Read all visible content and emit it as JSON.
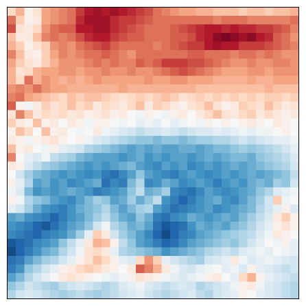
{
  "chart_data": {
    "type": "heatmap",
    "colormap": "RdBu_r",
    "colors": {
      "low": "#053061",
      "mid": "#f7f7f7",
      "high": "#67001f",
      "frame": "#000000"
    },
    "value_range": [
      -1,
      1
    ],
    "axes_ticks": false,
    "grid": false,
    "legend": "none",
    "rows": 34,
    "cols": 34,
    "values": [
      [
        0.2,
        0.35,
        0.05,
        0.15,
        0.4,
        0.45,
        0.5,
        0.55,
        0.7,
        0.8,
        0.85,
        0.8,
        0.85,
        0.8,
        0.75,
        0.7,
        0.65,
        0.55,
        0.5,
        0.45,
        0.4,
        0.4,
        0.35,
        0.35,
        0.3,
        0.3,
        0.3,
        0.25,
        0.3,
        0.3,
        0.25,
        0.3,
        0.3,
        0.35
      ],
      [
        0.55,
        0.25,
        0.05,
        0.1,
        0.4,
        0.45,
        0.5,
        0.55,
        0.75,
        0.85,
        0.85,
        0.85,
        0.75,
        0.7,
        0.7,
        0.65,
        0.6,
        0.55,
        0.55,
        0.55,
        0.55,
        0.55,
        0.55,
        0.55,
        0.5,
        0.55,
        0.55,
        0.55,
        0.5,
        0.5,
        0.5,
        0.5,
        0.5,
        0.55
      ],
      [
        0.65,
        0.15,
        0.1,
        0.2,
        0.45,
        0.55,
        0.6,
        0.6,
        0.8,
        0.8,
        0.85,
        0.85,
        0.75,
        0.7,
        0.65,
        0.6,
        0.55,
        0.55,
        0.55,
        0.6,
        0.65,
        0.7,
        0.75,
        0.8,
        0.8,
        0.75,
        0.8,
        0.75,
        0.75,
        0.7,
        0.7,
        0.65,
        0.6,
        0.5
      ],
      [
        0.3,
        0.1,
        0.1,
        0.3,
        0.5,
        0.55,
        0.5,
        0.55,
        0.65,
        0.75,
        0.8,
        0.8,
        0.7,
        0.65,
        0.6,
        0.6,
        0.55,
        0.55,
        0.55,
        0.6,
        0.6,
        0.65,
        0.75,
        0.8,
        0.9,
        0.95,
        0.9,
        0.85,
        0.9,
        0.8,
        0.75,
        0.6,
        0.55,
        0.45
      ],
      [
        0.35,
        0.25,
        0.05,
        0.15,
        0.25,
        0.45,
        0.5,
        0.45,
        0.55,
        0.6,
        0.65,
        0.7,
        0.6,
        0.55,
        0.55,
        0.55,
        0.55,
        0.5,
        0.55,
        0.6,
        0.65,
        0.7,
        0.7,
        0.8,
        0.85,
        0.8,
        0.8,
        0.7,
        0.7,
        0.7,
        0.65,
        0.6,
        0.55,
        0.5
      ],
      [
        0.5,
        0.3,
        0.1,
        0.05,
        0.25,
        0.4,
        0.5,
        0.45,
        0.5,
        0.55,
        0.55,
        0.6,
        0.55,
        0.5,
        0.45,
        0.55,
        0.55,
        0.55,
        0.55,
        0.55,
        0.55,
        0.6,
        0.6,
        0.55,
        0.55,
        0.55,
        0.5,
        0.55,
        0.55,
        0.5,
        0.55,
        0.5,
        0.45,
        0.45
      ],
      [
        0.4,
        0.25,
        0.15,
        0.1,
        0.25,
        0.35,
        0.45,
        0.45,
        0.45,
        0.5,
        0.55,
        0.5,
        0.55,
        0.5,
        0.5,
        0.6,
        0.55,
        0.6,
        0.7,
        0.7,
        0.7,
        0.65,
        0.65,
        0.6,
        0.55,
        0.5,
        0.45,
        0.45,
        0.5,
        0.45,
        0.45,
        0.5,
        0.5,
        0.45
      ],
      [
        0.35,
        0.15,
        0.2,
        0.35,
        0.4,
        0.4,
        0.45,
        0.45,
        0.4,
        0.45,
        0.45,
        0.5,
        0.45,
        0.45,
        0.5,
        0.45,
        0.45,
        0.5,
        0.55,
        0.6,
        0.65,
        0.6,
        0.55,
        0.5,
        0.45,
        0.4,
        0.4,
        0.4,
        0.45,
        0.45,
        0.4,
        0.45,
        0.45,
        0.45
      ],
      [
        0.35,
        0.2,
        0.55,
        0.35,
        0.45,
        0.4,
        0.35,
        0.4,
        0.35,
        0.4,
        0.45,
        0.4,
        0.4,
        0.4,
        0.4,
        0.4,
        0.45,
        0.4,
        0.4,
        0.45,
        0.45,
        0.4,
        0.4,
        0.4,
        0.35,
        0.35,
        0.35,
        0.35,
        0.4,
        0.35,
        0.35,
        0.4,
        0.4,
        0.4
      ],
      [
        0.45,
        0.5,
        0.45,
        0.55,
        0.45,
        0.4,
        0.4,
        0.35,
        0.35,
        0.35,
        0.35,
        0.35,
        0.35,
        0.4,
        0.35,
        0.35,
        0.35,
        0.35,
        0.35,
        0.35,
        0.35,
        0.35,
        0.3,
        0.3,
        0.3,
        0.3,
        0.3,
        0.3,
        0.3,
        0.3,
        0.35,
        0.3,
        0.3,
        0.3
      ],
      [
        0.5,
        0.55,
        0.4,
        0.35,
        0.3,
        0.25,
        0.2,
        0.3,
        0.25,
        0.3,
        0.3,
        0.25,
        0.2,
        0.15,
        0.2,
        0.25,
        0.2,
        0.25,
        0.3,
        0.25,
        0.15,
        0.2,
        0.25,
        0.2,
        0.25,
        0.2,
        0.25,
        0.2,
        0.25,
        0.2,
        0.25,
        0.25,
        0.2,
        0.25
      ],
      [
        0.6,
        0.05,
        -0.05,
        0.1,
        0.25,
        0.15,
        0.2,
        0.3,
        0.2,
        0.25,
        0.1,
        0.2,
        0.15,
        0.1,
        0.2,
        0.3,
        0.1,
        0.25,
        0.2,
        0.1,
        0.05,
        0.15,
        0.2,
        0.3,
        0.15,
        0.05,
        0.1,
        0.25,
        0.2,
        0.15,
        0.3,
        0.2,
        0.1,
        0.15
      ],
      [
        0.15,
        0.5,
        0.3,
        0.1,
        0.2,
        0.15,
        0.2,
        0.1,
        0.15,
        0.05,
        0.1,
        0.15,
        0.05,
        0.1,
        0.0,
        -0.05,
        0.05,
        0.0,
        -0.05,
        0.05,
        0.1,
        0.0,
        0.1,
        0.2,
        0.3,
        0.15,
        0.1,
        0.2,
        0.25,
        0.1,
        0.2,
        0.1,
        0.05,
        0.1
      ],
      [
        0.25,
        0.1,
        0.05,
        0.3,
        0.05,
        0.1,
        0.0,
        0.1,
        0.05,
        -0.05,
        0.05,
        0.05,
        0.0,
        -0.05,
        0.0,
        -0.1,
        -0.05,
        -0.1,
        0.0,
        -0.1,
        -0.05,
        0.0,
        -0.05,
        0.05,
        0.0,
        0.05,
        0.0,
        0.05,
        0.1,
        0.05,
        0.0,
        0.1,
        0.05,
        0.0
      ],
      [
        0.05,
        0.3,
        0.2,
        0.0,
        0.3,
        0.05,
        0.1,
        0.0,
        -0.05,
        0.0,
        0.1,
        -0.05,
        -0.1,
        -0.15,
        -0.2,
        -0.25,
        -0.2,
        -0.2,
        -0.15,
        -0.2,
        -0.25,
        -0.2,
        -0.15,
        -0.15,
        -0.1,
        -0.15,
        -0.1,
        -0.05,
        -0.1,
        -0.05,
        -0.05,
        0.0,
        0.05,
        0.0
      ],
      [
        0.1,
        0.05,
        -0.05,
        0.05,
        0.1,
        0.15,
        0.05,
        0.0,
        0.05,
        -0.05,
        -0.15,
        -0.2,
        -0.25,
        -0.3,
        -0.35,
        -0.4,
        -0.4,
        -0.45,
        -0.4,
        -0.4,
        -0.45,
        -0.4,
        -0.35,
        -0.35,
        -0.3,
        -0.3,
        -0.25,
        -0.2,
        -0.25,
        -0.2,
        -0.15,
        -0.1,
        -0.1,
        -0.05
      ],
      [
        0.3,
        0.05,
        0.1,
        0.0,
        -0.05,
        0.05,
        -0.1,
        -0.15,
        -0.2,
        -0.3,
        -0.35,
        -0.4,
        -0.45,
        -0.5,
        -0.55,
        -0.5,
        -0.55,
        -0.5,
        -0.55,
        -0.55,
        -0.5,
        -0.5,
        -0.55,
        -0.5,
        -0.45,
        -0.45,
        -0.4,
        -0.35,
        -0.4,
        -0.35,
        -0.3,
        -0.25,
        -0.2,
        -0.1
      ],
      [
        0.5,
        0.0,
        -0.1,
        -0.15,
        -0.05,
        -0.25,
        -0.3,
        -0.35,
        -0.45,
        -0.5,
        -0.55,
        -0.55,
        -0.55,
        -0.6,
        -0.55,
        -0.5,
        -0.6,
        -0.55,
        -0.6,
        -0.55,
        -0.55,
        -0.6,
        -0.55,
        -0.5,
        -0.55,
        -0.5,
        -0.45,
        -0.45,
        -0.5,
        -0.4,
        -0.35,
        -0.3,
        -0.25,
        -0.15
      ],
      [
        0.1,
        0.05,
        -0.15,
        -0.25,
        -0.35,
        -0.4,
        -0.45,
        -0.5,
        -0.55,
        -0.6,
        -0.55,
        -0.6,
        -0.55,
        -0.5,
        -0.45,
        -0.55,
        -0.6,
        -0.65,
        -0.55,
        -0.6,
        -0.55,
        -0.65,
        -0.6,
        -0.55,
        -0.6,
        -0.55,
        -0.5,
        -0.55,
        -0.5,
        -0.45,
        -0.4,
        -0.35,
        -0.3,
        -0.2
      ],
      [
        0.0,
        -0.2,
        -0.35,
        -0.45,
        -0.5,
        -0.55,
        -0.6,
        -0.55,
        -0.6,
        -0.65,
        -0.6,
        -0.7,
        -0.75,
        -0.65,
        -0.55,
        -0.4,
        -0.55,
        -0.6,
        -0.65,
        -0.7,
        -0.6,
        -0.55,
        -0.6,
        -0.65,
        -0.6,
        -0.55,
        -0.6,
        -0.55,
        -0.5,
        -0.55,
        -0.5,
        -0.45,
        -0.4,
        -0.25
      ],
      [
        0.05,
        -0.1,
        -0.3,
        -0.55,
        -0.5,
        -0.6,
        -0.55,
        -0.65,
        -0.6,
        -0.55,
        -0.5,
        -0.75,
        -0.65,
        -0.7,
        -0.45,
        -0.3,
        -0.65,
        -0.6,
        -0.5,
        -0.55,
        -0.65,
        -0.6,
        -0.55,
        -0.6,
        -0.7,
        -0.6,
        -0.55,
        -0.6,
        -0.5,
        -0.45,
        -0.5,
        -0.35,
        -0.4,
        -0.2
      ],
      [
        -0.05,
        -0.15,
        -0.45,
        -0.6,
        -0.55,
        -0.6,
        -0.55,
        -0.5,
        -0.55,
        -0.6,
        -0.7,
        -0.65,
        -0.6,
        -0.55,
        -0.4,
        -0.25,
        -0.5,
        -0.45,
        -0.35,
        -0.65,
        -0.7,
        -0.75,
        -0.65,
        -0.55,
        -0.6,
        -0.65,
        -0.6,
        -0.55,
        -0.5,
        -0.4,
        -0.3,
        -0.15,
        -0.1,
        -0.05
      ],
      [
        0.05,
        -0.05,
        -0.3,
        -0.4,
        -0.45,
        -0.55,
        -0.6,
        -0.65,
        -0.55,
        -0.45,
        -0.35,
        -0.4,
        -0.55,
        -0.5,
        -0.35,
        -0.5,
        -0.4,
        -0.25,
        -0.6,
        -0.7,
        -0.8,
        -0.7,
        -0.6,
        -0.55,
        -0.5,
        -0.6,
        -0.65,
        -0.55,
        -0.45,
        -0.35,
        -0.2,
        0.25,
        -0.05,
        0.0
      ],
      [
        -0.1,
        -0.2,
        -0.35,
        -0.5,
        -0.6,
        -0.65,
        -0.7,
        -0.6,
        -0.5,
        -0.45,
        -0.4,
        -0.3,
        -0.45,
        -0.55,
        -0.45,
        -0.35,
        -0.3,
        -0.55,
        -0.65,
        -0.75,
        -0.7,
        -0.65,
        -0.6,
        -0.55,
        -0.65,
        -0.6,
        -0.55,
        -0.5,
        -0.45,
        -0.3,
        -0.2,
        -0.1,
        0.05,
        -0.15
      ],
      [
        -0.55,
        -0.5,
        -0.6,
        -0.65,
        -0.7,
        -0.8,
        -0.7,
        -0.6,
        -0.55,
        -0.45,
        -0.35,
        -0.25,
        -0.4,
        -0.5,
        -0.55,
        -0.4,
        -0.5,
        -0.7,
        -0.75,
        -0.65,
        -0.6,
        -0.5,
        -0.55,
        -0.6,
        -0.55,
        -0.5,
        -0.55,
        -0.45,
        -0.35,
        -0.25,
        -0.15,
        0.1,
        0.25,
        0.05
      ],
      [
        -0.6,
        -0.65,
        -0.7,
        -0.8,
        -0.85,
        -0.75,
        -0.65,
        -0.55,
        -0.5,
        -0.4,
        -0.2,
        -0.05,
        -0.3,
        -0.4,
        -0.5,
        -0.45,
        -0.55,
        -0.75,
        -0.85,
        -0.8,
        -0.75,
        -0.6,
        -0.5,
        -0.55,
        -0.5,
        -0.55,
        -0.45,
        -0.4,
        -0.3,
        -0.2,
        -0.1,
        0.05,
        0.15,
        0.05
      ],
      [
        -0.65,
        -0.7,
        -0.75,
        -0.8,
        -0.7,
        -0.65,
        -0.6,
        -0.5,
        -0.35,
        -0.1,
        0.25,
        0.1,
        -0.2,
        -0.35,
        -0.45,
        -0.55,
        -0.65,
        -0.8,
        -0.9,
        -0.8,
        -0.7,
        -0.65,
        -0.55,
        -0.5,
        -0.45,
        -0.4,
        -0.35,
        -0.3,
        -0.25,
        -0.15,
        -0.05,
        0.1,
        0.05,
        0.0
      ],
      [
        -0.85,
        -0.8,
        -0.75,
        -0.65,
        -0.6,
        -0.55,
        -0.4,
        -0.25,
        -0.1,
        0.1,
        0.35,
        0.3,
        0.05,
        -0.25,
        -0.4,
        -0.55,
        -0.6,
        -0.7,
        -0.8,
        -0.75,
        -0.65,
        -0.55,
        -0.5,
        -0.45,
        -0.4,
        -0.35,
        -0.4,
        -0.3,
        -0.2,
        -0.1,
        0.0,
        -0.05,
        0.05,
        -0.1
      ],
      [
        -0.9,
        -0.8,
        -0.7,
        -0.6,
        -0.5,
        -0.45,
        -0.3,
        -0.2,
        -0.05,
        0.15,
        0.2,
        0.1,
        -0.1,
        -0.3,
        -0.35,
        -0.4,
        -0.45,
        -0.5,
        -0.6,
        -0.55,
        -0.5,
        -0.45,
        -0.4,
        -0.3,
        -0.25,
        -0.2,
        -0.25,
        -0.15,
        -0.1,
        -0.05,
        -0.1,
        0.0,
        -0.05,
        -0.1
      ],
      [
        -0.75,
        -0.7,
        -0.55,
        -0.45,
        -0.35,
        -0.3,
        -0.2,
        -0.1,
        0.05,
        0.15,
        0.3,
        0.2,
        0.05,
        -0.1,
        -0.15,
        0.2,
        0.45,
        0.25,
        -0.1,
        -0.2,
        -0.25,
        -0.3,
        -0.35,
        -0.2,
        -0.15,
        -0.1,
        0.1,
        -0.05,
        -0.15,
        -0.1,
        -0.05,
        -0.1,
        -0.15,
        -0.2
      ],
      [
        -0.7,
        -0.6,
        -0.4,
        -0.3,
        -0.2,
        -0.1,
        0.05,
        0.1,
        0.2,
        0.25,
        0.2,
        0.1,
        0.05,
        0.0,
        0.1,
        0.6,
        0.5,
        0.35,
        0.1,
        -0.05,
        -0.15,
        -0.2,
        -0.1,
        -0.05,
        0.0,
        -0.1,
        -0.05,
        -0.15,
        0.05,
        -0.1,
        -0.15,
        -0.2,
        -0.25,
        -0.2
      ],
      [
        -0.55,
        -0.45,
        -0.3,
        -0.2,
        -0.1,
        0.0,
        0.1,
        0.15,
        0.1,
        0.05,
        0.0,
        -0.05,
        -0.1,
        -0.05,
        0.05,
        0.15,
        0.1,
        0.05,
        -0.05,
        -0.1,
        -0.15,
        -0.1,
        -0.05,
        0.05,
        0.1,
        0.0,
        -0.1,
        0.2,
        0.35,
        0.05,
        -0.1,
        -0.15,
        -0.2,
        -0.25
      ],
      [
        -0.4,
        -0.3,
        -0.2,
        -0.25,
        -0.3,
        -0.35,
        -0.25,
        -0.2,
        -0.15,
        -0.2,
        -0.25,
        -0.3,
        -0.25,
        -0.15,
        -0.1,
        -0.05,
        -0.15,
        -0.2,
        -0.25,
        -0.2,
        -0.15,
        -0.2,
        -0.3,
        -0.25,
        -0.2,
        -0.15,
        -0.05,
        0.05,
        0.1,
        -0.05,
        -0.15,
        -0.2,
        -0.25,
        -0.3
      ],
      [
        -0.3,
        -0.2,
        -0.15,
        -0.2,
        -0.25,
        -0.3,
        -0.35,
        -0.3,
        -0.25,
        -0.3,
        -0.35,
        -0.3,
        -0.25,
        -0.2,
        -0.15,
        -0.1,
        -0.2,
        -0.25,
        -0.3,
        -0.25,
        -0.2,
        -0.15,
        -0.25,
        -0.3,
        -0.2,
        -0.15,
        -0.1,
        0.05,
        0.0,
        -0.1,
        -0.15,
        -0.2,
        -0.25,
        -0.3
      ]
    ]
  }
}
